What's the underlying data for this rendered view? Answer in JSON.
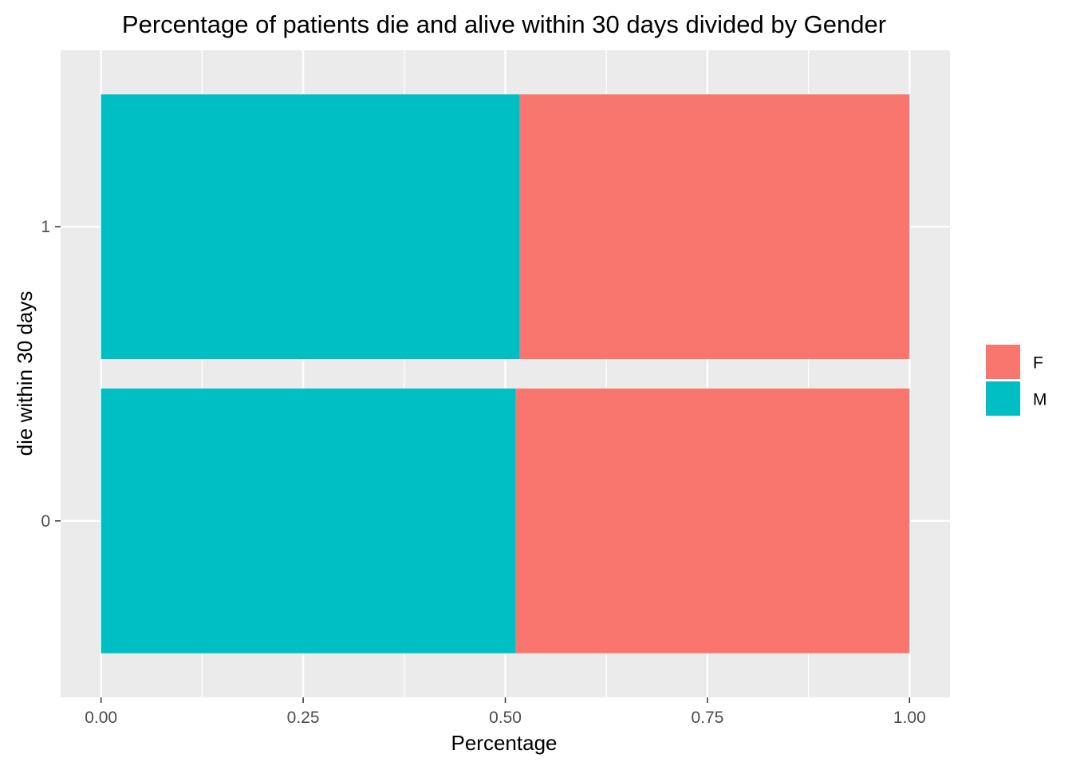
{
  "chart_data": {
    "type": "bar",
    "orientation": "horizontal",
    "stacked": true,
    "title": "Percentage of patients die and alive within 30 days divided by Gender",
    "xlabel": "Percentage",
    "ylabel": "die within 30 days",
    "xlim": [
      -0.05,
      1.05
    ],
    "x_ticks": [
      0.0,
      0.25,
      0.5,
      0.75,
      1.0
    ],
    "x_tick_labels": [
      "0.00",
      "0.25",
      "0.50",
      "0.75",
      "1.00"
    ],
    "categories": [
      "0",
      "1"
    ],
    "series": [
      {
        "name": "M",
        "color": "#00BFC4",
        "values": [
          0.513,
          0.518
        ]
      },
      {
        "name": "F",
        "color": "#F8766D",
        "values": [
          0.487,
          0.482
        ]
      }
    ],
    "legend": {
      "position": "right",
      "entries": [
        {
          "label": "F",
          "color": "#F8766D"
        },
        {
          "label": "M",
          "color": "#00BFC4"
        }
      ]
    },
    "panel_background": "#EBEBEB",
    "grid": true
  }
}
